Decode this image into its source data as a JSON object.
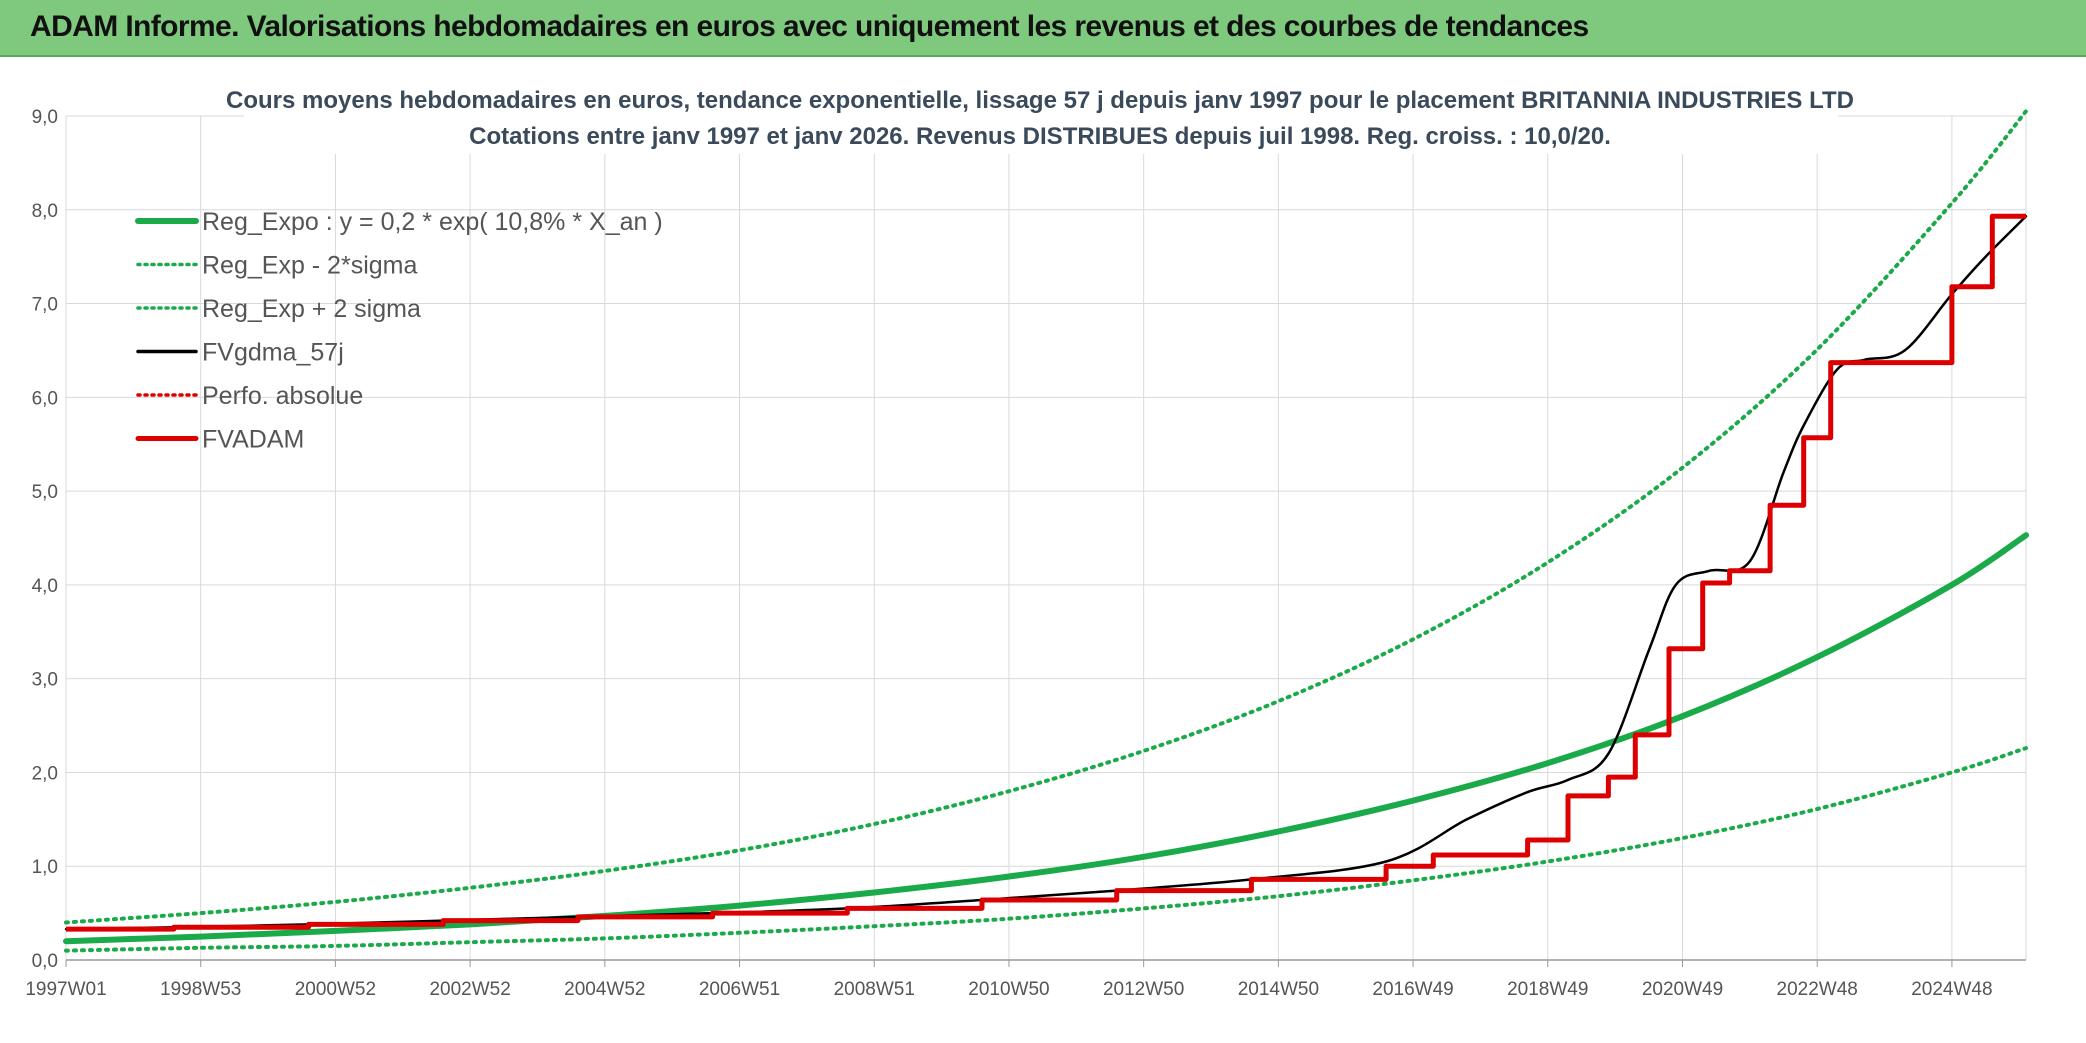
{
  "header": {
    "title": "ADAM Informe. Valorisations hebdomadaires en euros avec uniquement les revenus et des courbes de tendances"
  },
  "chart_data": {
    "type": "line",
    "title": "Cours moyens hebdomadaires en euros, tendance exponentielle, lissage 57 j depuis janv 1997 pour le placement BRITANNIA INDUSTRIES LTD",
    "subtitle": "Cotations entre janv 1997 et janv 2026. Revenus DISTRIBUES depuis juil 1998. Reg. croiss. : 10,0/20.",
    "xlabel": "",
    "ylabel": "",
    "ylim": [
      0,
      9
    ],
    "xlim": [
      1997.0,
      2026.1
    ],
    "yticks": [
      "0,0",
      "1,0",
      "2,0",
      "3,0",
      "4,0",
      "5,0",
      "6,0",
      "7,0",
      "8,0",
      "9,0"
    ],
    "xticks": [
      {
        "label": "1997W01",
        "x": 1997.0
      },
      {
        "label": "1998W53",
        "x": 1999.0
      },
      {
        "label": "2000W52",
        "x": 2001.0
      },
      {
        "label": "2002W52",
        "x": 2003.0
      },
      {
        "label": "2004W52",
        "x": 2005.0
      },
      {
        "label": "2006W51",
        "x": 2007.0
      },
      {
        "label": "2008W51",
        "x": 2009.0
      },
      {
        "label": "2010W50",
        "x": 2011.0
      },
      {
        "label": "2012W50",
        "x": 2013.0
      },
      {
        "label": "2014W50",
        "x": 2015.0
      },
      {
        "label": "2016W49",
        "x": 2017.0
      },
      {
        "label": "2018W49",
        "x": 2019.0
      },
      {
        "label": "2020W49",
        "x": 2021.0
      },
      {
        "label": "2022W48",
        "x": 2023.0
      },
      {
        "label": "2024W48",
        "x": 2025.0
      }
    ],
    "grid": true,
    "legend_position": "top-left",
    "series": [
      {
        "name": "Reg_Expo : y = 0,2 * exp( 10,8% *  X_an )",
        "color": "#1aaa4a",
        "style": "solid-thick",
        "x": [
          1997.0,
          1999.0,
          2001.0,
          2003.0,
          2005.0,
          2007.0,
          2009.0,
          2011.0,
          2013.0,
          2015.0,
          2017.0,
          2019.0,
          2021.0,
          2023.0,
          2025.0,
          2026.2
        ],
        "y": [
          0.2,
          0.25,
          0.31,
          0.38,
          0.47,
          0.58,
          0.72,
          0.89,
          1.1,
          1.37,
          1.7,
          2.1,
          2.6,
          3.23,
          4.0,
          4.53
        ]
      },
      {
        "name": "Reg_Exp - 2*sigma",
        "color": "#1aaa4a",
        "style": "dotted",
        "x": [
          1997.0,
          1999.0,
          2001.0,
          2003.0,
          2005.0,
          2007.0,
          2009.0,
          2011.0,
          2013.0,
          2015.0,
          2017.0,
          2019.0,
          2021.0,
          2023.0,
          2025.0,
          2026.2
        ],
        "y": [
          0.1,
          0.13,
          0.15,
          0.19,
          0.23,
          0.29,
          0.36,
          0.44,
          0.55,
          0.68,
          0.85,
          1.05,
          1.3,
          1.61,
          2.0,
          2.26
        ]
      },
      {
        "name": "Reg_Exp + 2 sigma",
        "color": "#1aaa4a",
        "style": "dotted",
        "x": [
          1997.0,
          1999.0,
          2001.0,
          2003.0,
          2005.0,
          2007.0,
          2009.0,
          2011.0,
          2013.0,
          2015.0,
          2017.0,
          2019.0,
          2021.0,
          2023.0,
          2025.0,
          2026.2
        ],
        "y": [
          0.4,
          0.5,
          0.62,
          0.77,
          0.95,
          1.17,
          1.45,
          1.8,
          2.23,
          2.76,
          3.42,
          4.24,
          5.25,
          6.51,
          8.07,
          9.05
        ]
      },
      {
        "name": "FVgdma_57j",
        "color": "#000000",
        "style": "solid",
        "x": [
          1997.0,
          1998.6,
          2000.6,
          2002.6,
          2004.6,
          2006.6,
          2008.6,
          2010.6,
          2012.6,
          2014.6,
          2016.6,
          2017.8,
          2018.7,
          2019.3,
          2019.9,
          2020.5,
          2020.9,
          2021.4,
          2022.0,
          2022.5,
          2022.8,
          2023.3,
          2023.7,
          2024.3,
          2025.0,
          2025.5,
          2026.2
        ],
        "y": [
          0.33,
          0.35,
          0.38,
          0.42,
          0.46,
          0.5,
          0.55,
          0.64,
          0.74,
          0.86,
          1.05,
          1.5,
          1.79,
          1.92,
          2.2,
          3.3,
          4.0,
          4.15,
          4.25,
          5.2,
          5.7,
          6.3,
          6.4,
          6.5,
          7.1,
          7.5,
          7.93
        ]
      },
      {
        "name": "Perfo. absolue",
        "color": "#dd0000",
        "style": "dotted",
        "x": [],
        "y": []
      },
      {
        "name": "FVADAM",
        "color": "#dd0000",
        "style": "step-thick",
        "x": [
          1997.0,
          1998.6,
          2000.6,
          2002.6,
          2004.6,
          2006.6,
          2008.6,
          2010.6,
          2012.6,
          2014.6,
          2016.6,
          2017.3,
          2018.7,
          2019.3,
          2019.9,
          2020.3,
          2020.8,
          2021.3,
          2021.7,
          2022.3,
          2022.8,
          2023.2,
          2024.4,
          2025.0,
          2025.6,
          2026.2
        ],
        "y": [
          0.33,
          0.35,
          0.38,
          0.42,
          0.46,
          0.5,
          0.55,
          0.64,
          0.74,
          0.86,
          1.0,
          1.12,
          1.28,
          1.75,
          1.95,
          2.4,
          3.32,
          4.02,
          4.15,
          4.85,
          5.57,
          6.37,
          6.37,
          7.18,
          7.93,
          7.93
        ]
      }
    ]
  }
}
